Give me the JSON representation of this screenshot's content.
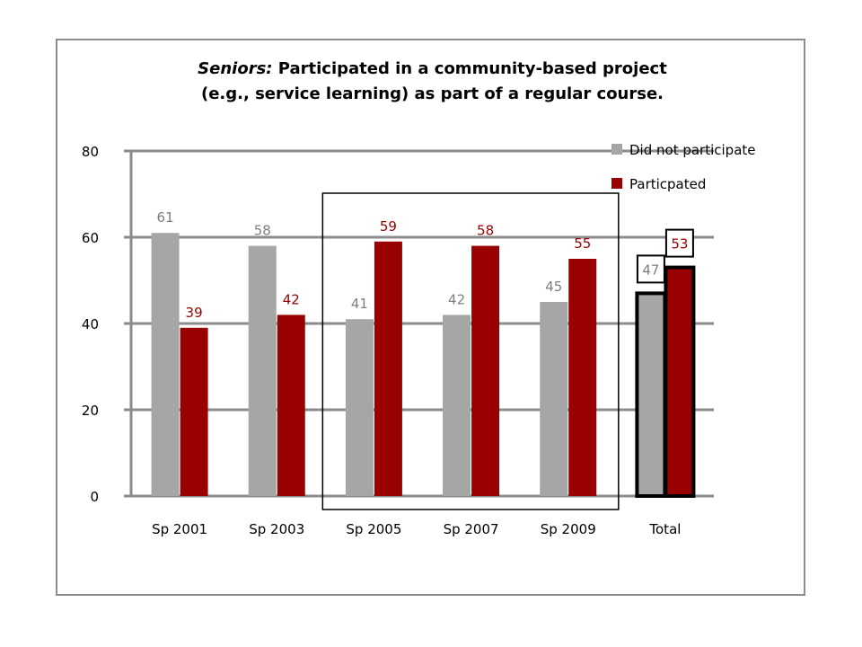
{
  "chart_data": {
    "type": "bar",
    "title_lead": "Seniors:",
    "title_rest": "Participated in a community-based project",
    "title_line2": "(e.g., service learning) as part of a regular course.",
    "categories": [
      "Sp 2001",
      "Sp 2003",
      "Sp 2005",
      "Sp 2007",
      "Sp 2009",
      "Total"
    ],
    "series": [
      {
        "name": "Did not participate",
        "color": "#a6a6a6",
        "label_color": "#7f7f7f",
        "values": [
          61,
          58,
          41,
          42,
          45,
          47
        ],
        "labels": [
          "61",
          "58",
          "41",
          "42",
          "45",
          "47"
        ]
      },
      {
        "name": "Particpated",
        "color": "#990000",
        "label_color": "#990000",
        "values": [
          39,
          42,
          59,
          58,
          55,
          53
        ],
        "labels": [
          "39",
          "42",
          "59",
          "58",
          "55",
          "53"
        ]
      }
    ],
    "yticks": [
      "0",
      "20",
      "40",
      "60",
      "80"
    ],
    "ylim": [
      0,
      80
    ],
    "grid": true,
    "legend": "top-right",
    "highlight_group": [
      "Sp 2005",
      "Sp 2007",
      "Sp 2009"
    ],
    "emphasized_category": "Total"
  }
}
